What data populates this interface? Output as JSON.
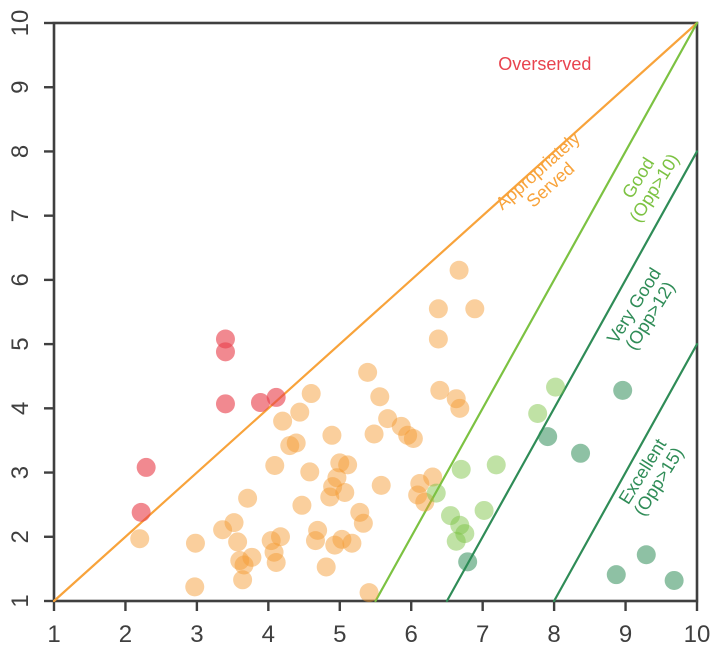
{
  "chart_data": {
    "type": "scatter",
    "title": "",
    "xlabel": "",
    "ylabel": "",
    "xlim": [
      1,
      10
    ],
    "ylim": [
      1,
      10
    ],
    "x_ticks": [
      1,
      2,
      3,
      4,
      5,
      6,
      7,
      8,
      9,
      10
    ],
    "y_ticks": [
      1,
      2,
      3,
      4,
      5,
      6,
      7,
      8,
      9,
      10
    ],
    "grid": false,
    "legend": "none",
    "axis_color": "#3f3f3f",
    "series": [
      {
        "name": "overserved-points",
        "zone": "Overserved",
        "color": "#e8404c",
        "opacity": 0.62,
        "points": [
          [
            2.29,
            3.08
          ],
          [
            2.22,
            2.38
          ],
          [
            3.4,
            5.08
          ],
          [
            3.4,
            4.88
          ],
          [
            3.4,
            4.07
          ],
          [
            3.89,
            4.09
          ],
          [
            4.11,
            4.17
          ]
        ]
      },
      {
        "name": "appropriately-served-points",
        "zone": "Appropriately Served",
        "color": "#f59b33",
        "opacity": 0.48,
        "points": [
          [
            2.2,
            1.97
          ],
          [
            2.98,
            1.9
          ],
          [
            2.97,
            1.22
          ],
          [
            3.36,
            2.11
          ],
          [
            3.52,
            2.22
          ],
          [
            3.71,
            2.6
          ],
          [
            3.57,
            1.92
          ],
          [
            3.6,
            1.63
          ],
          [
            3.66,
            1.56
          ],
          [
            3.64,
            1.33
          ],
          [
            3.77,
            1.68
          ],
          [
            4.04,
            1.94
          ],
          [
            4.08,
            1.76
          ],
          [
            4.11,
            1.6
          ],
          [
            4.17,
            2.0
          ],
          [
            4.47,
            2.49
          ],
          [
            4.69,
            2.1
          ],
          [
            4.66,
            1.94
          ],
          [
            4.93,
            1.87
          ],
          [
            5.03,
            1.96
          ],
          [
            5.17,
            1.9
          ],
          [
            4.81,
            1.53
          ],
          [
            5.41,
            1.13
          ],
          [
            5.28,
            2.38
          ],
          [
            5.33,
            2.21
          ],
          [
            4.09,
            3.11
          ],
          [
            4.3,
            3.42
          ],
          [
            4.58,
            3.01
          ],
          [
            5.0,
            3.15
          ],
          [
            5.11,
            3.12
          ],
          [
            4.96,
            2.92
          ],
          [
            4.9,
            2.78
          ],
          [
            5.07,
            2.69
          ],
          [
            4.86,
            2.62
          ],
          [
            5.58,
            2.8
          ],
          [
            6.12,
            2.83
          ],
          [
            6.09,
            2.65
          ],
          [
            6.3,
            2.93
          ],
          [
            6.19,
            2.54
          ],
          [
            4.2,
            3.8
          ],
          [
            4.44,
            3.94
          ],
          [
            4.6,
            4.23
          ],
          [
            4.39,
            3.46
          ],
          [
            4.89,
            3.58
          ],
          [
            5.39,
            4.56
          ],
          [
            5.56,
            4.18
          ],
          [
            5.48,
            3.6
          ],
          [
            5.67,
            3.84
          ],
          [
            5.86,
            3.72
          ],
          [
            5.95,
            3.58
          ],
          [
            6.03,
            3.53
          ],
          [
            6.4,
            4.28
          ],
          [
            6.63,
            4.15
          ],
          [
            6.68,
            4.0
          ],
          [
            6.67,
            6.15
          ],
          [
            6.38,
            5.55
          ],
          [
            6.89,
            5.55
          ],
          [
            6.38,
            5.08
          ]
        ]
      },
      {
        "name": "good-points",
        "zone": "Good (Opp>10)",
        "color": "#7cc242",
        "opacity": 0.48,
        "points": [
          [
            6.55,
            2.33
          ],
          [
            6.68,
            2.18
          ],
          [
            6.75,
            2.05
          ],
          [
            6.63,
            1.93
          ],
          [
            6.35,
            2.68
          ],
          [
            6.7,
            3.05
          ],
          [
            7.19,
            3.12
          ],
          [
            7.02,
            2.41
          ],
          [
            7.77,
            3.92
          ],
          [
            8.02,
            4.33
          ]
        ]
      },
      {
        "name": "very-good-excellent-points",
        "zone": "Very Good / Excellent",
        "color": "#2f8c57",
        "opacity": 0.54,
        "points": [
          [
            6.79,
            1.61
          ],
          [
            7.91,
            3.56
          ],
          [
            8.37,
            3.3
          ],
          [
            8.96,
            4.28
          ],
          [
            9.29,
            1.72
          ],
          [
            8.87,
            1.41
          ],
          [
            9.68,
            1.32
          ]
        ]
      }
    ],
    "boundary_lines": [
      {
        "name": "appropriately-served-line",
        "color": "#f8a33b",
        "from": [
          1,
          1
        ],
        "to": [
          10,
          10
        ]
      },
      {
        "name": "good-opp10-line",
        "color": "#7cc242",
        "from": [
          5.5,
          1
        ],
        "to": [
          10,
          10
        ]
      },
      {
        "name": "very-good-opp12-line",
        "color": "#2f8c57",
        "from": [
          6.5,
          1
        ],
        "to": [
          10,
          8
        ]
      },
      {
        "name": "excellent-opp15-line",
        "color": "#2f8c57",
        "from": [
          8,
          1
        ],
        "to": [
          10,
          5
        ]
      }
    ],
    "annotations": [
      {
        "name": "overserved-label",
        "lines": [
          "Overserved"
        ],
        "color": "#e8434e",
        "x": 7.87,
        "y": 9.36,
        "rotation": 0
      },
      {
        "name": "appropriately-served-label",
        "lines": [
          "Appropriately",
          "Served"
        ],
        "color": "#f8a33b",
        "x": 7.86,
        "y": 7.59,
        "rotation": -42
      },
      {
        "name": "good-label",
        "lines": [
          "Good",
          "(Opp>10)"
        ],
        "color": "#7cc242",
        "x": 9.29,
        "y": 7.51,
        "rotation": -58
      },
      {
        "name": "very-good-label",
        "lines": [
          "Very Good",
          "(Opp>12)"
        ],
        "color": "#2f8c57",
        "x": 9.23,
        "y": 5.52,
        "rotation": -58
      },
      {
        "name": "excellent-label",
        "lines": [
          "Excellent",
          "(Opp>15)"
        ],
        "color": "#2f8c57",
        "x": 9.35,
        "y": 2.94,
        "rotation": -58
      }
    ]
  }
}
